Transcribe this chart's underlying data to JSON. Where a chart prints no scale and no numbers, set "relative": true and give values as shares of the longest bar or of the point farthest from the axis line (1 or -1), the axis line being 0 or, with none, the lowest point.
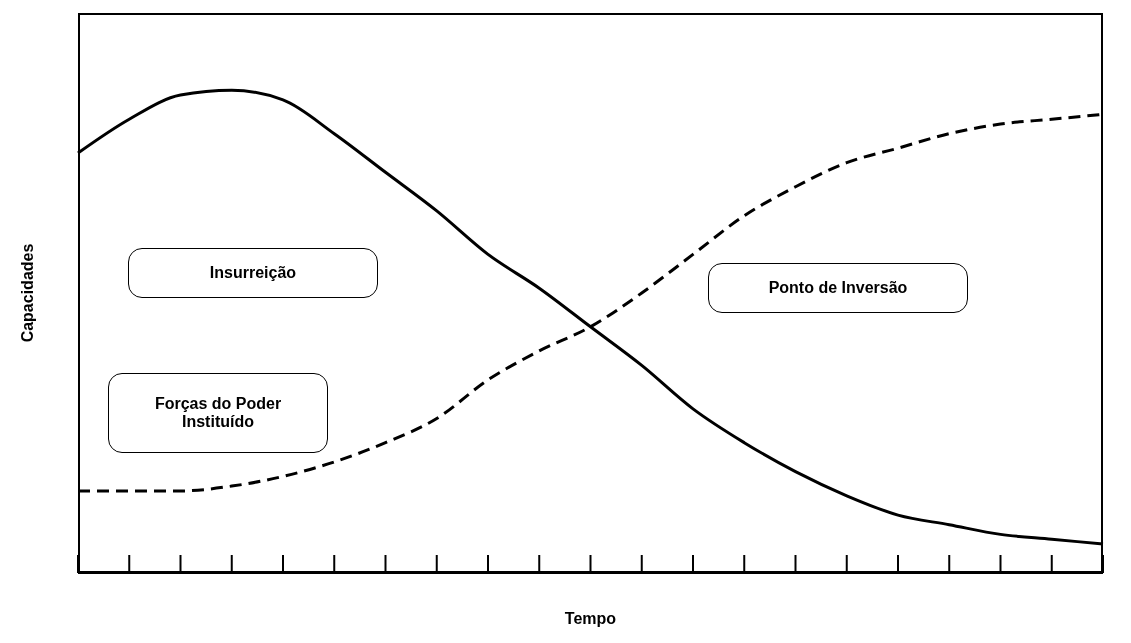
{
  "chart_data": {
    "type": "line",
    "relative": true,
    "xlabel": "Tempo",
    "ylabel": "Capacidades",
    "categories": [
      null,
      null,
      null,
      null,
      null,
      null,
      null,
      null,
      null,
      null,
      null,
      null,
      null,
      null,
      null,
      null,
      null,
      null,
      null,
      null,
      null
    ],
    "series": [
      {
        "name": "Insurreição",
        "color": "#000000",
        "line_style": "solid",
        "values": [
          0.87,
          0.94,
          0.99,
          1,
          0.98,
          0.91,
          0.83,
          0.75,
          0.66,
          0.59,
          0.51,
          0.43,
          0.34,
          0.27,
          0.21,
          0.16,
          0.12,
          0.1,
          0.08,
          0.07,
          0.06
        ]
      },
      {
        "name": "Forças do Poder Instituído",
        "color": "#000000",
        "line_style": "dashed",
        "values": [
          0.17,
          0.17,
          0.17,
          0.18,
          0.2,
          0.23,
          0.27,
          0.32,
          0.4,
          0.46,
          0.51,
          0.58,
          0.66,
          0.74,
          0.8,
          0.85,
          0.88,
          0.91,
          0.93,
          0.94,
          0.95
        ]
      }
    ],
    "annotations": [
      "Ponto de Inversão"
    ],
    "grid": false,
    "legend": false,
    "marker": "none"
  }
}
